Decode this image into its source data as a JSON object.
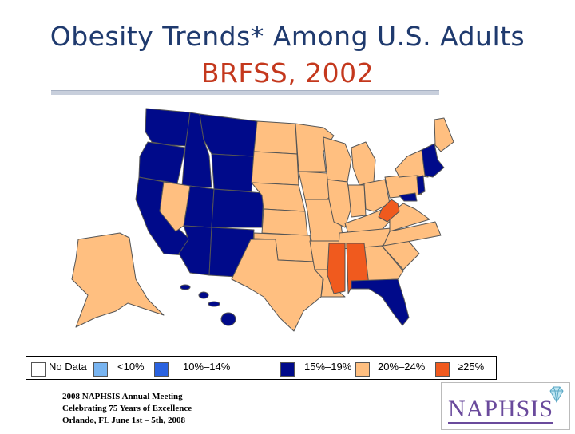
{
  "title_line1": "Obesity Trends* Among U.S. Adults",
  "title_line2": "BRFSS, 2002",
  "colors": {
    "no_data": "#ffffff",
    "lt10": "#78b4f0",
    "p10_14": "#2a62df",
    "p15_19": "#000a8a",
    "p20_24": "#ffbf80",
    "p25_plus": "#f05a1e",
    "title_blue": "#1f3a6e",
    "title_red": "#c4381d",
    "land_outline": "#555555"
  },
  "legend": [
    {
      "label": "No Data",
      "color_key": "no_data"
    },
    {
      "label": "<10%",
      "color_key": "lt10"
    },
    {
      "label": "10%–14%",
      "color_key": "p10_14"
    },
    {
      "label": "15%–19%",
      "color_key": "p15_19"
    },
    {
      "label": "20%–24%",
      "color_key": "p20_24"
    },
    {
      "label": "≥25%",
      "color_key": "p25_plus"
    }
  ],
  "footer": {
    "line1": "2008 NAPHSIS Annual Meeting",
    "line2": "Celebrating 75 Years of Excellence",
    "line3": "Orlando, FL     June 1st – 5th, 2008"
  },
  "logo_text": "NAPHSIS"
}
